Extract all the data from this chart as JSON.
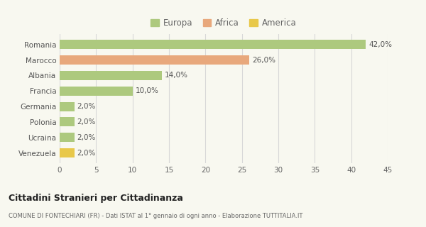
{
  "categories": [
    "Romania",
    "Marocco",
    "Albania",
    "Francia",
    "Germania",
    "Polonia",
    "Ucraina",
    "Venezuela"
  ],
  "values": [
    42.0,
    26.0,
    14.0,
    10.0,
    2.0,
    2.0,
    2.0,
    2.0
  ],
  "colors": [
    "#adc97e",
    "#e8a87c",
    "#adc97e",
    "#adc97e",
    "#adc97e",
    "#adc97e",
    "#adc97e",
    "#e8c84a"
  ],
  "legend_labels": [
    "Europa",
    "Africa",
    "America"
  ],
  "legend_colors": [
    "#adc97e",
    "#e8a87c",
    "#e8c84a"
  ],
  "xlim": [
    0,
    45
  ],
  "xticks": [
    0,
    5,
    10,
    15,
    20,
    25,
    30,
    35,
    40,
    45
  ],
  "title": "Cittadini Stranieri per Cittadinanza",
  "subtitle": "COMUNE DI FONTECHIARI (FR) - Dati ISTAT al 1° gennaio di ogni anno - Elaborazione TUTTITALIA.IT",
  "bg_color": "#f8f8f0",
  "grid_color": "#d8d8d8",
  "bar_height": 0.6
}
